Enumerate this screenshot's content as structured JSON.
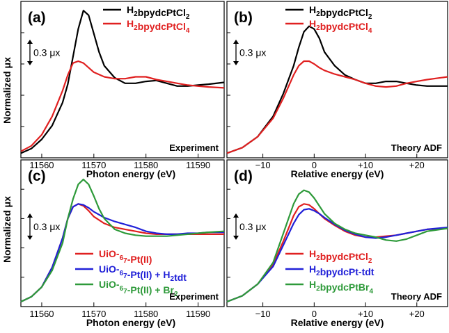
{
  "figure": {
    "ylabel_top": "Normalized μx",
    "ylabel_bottom": "Normalized μx",
    "scale_label": "0.3 μx"
  },
  "chart_data": [
    {
      "type": "line",
      "panel": "(a)",
      "annotation": "Experiment",
      "xlabel": "Photon energy (eV)",
      "ylabel": "Normalized μx",
      "xlim": [
        11556,
        11595
      ],
      "xticks": [
        11560,
        11570,
        11580,
        11590
      ],
      "legend_placement": "top-right",
      "series": [
        {
          "name": "H2bpydcPtCl2",
          "color": "#000000",
          "x": [
            11556,
            11558,
            11560,
            11562,
            11564,
            11565,
            11566,
            11567,
            11568,
            11569,
            11570,
            11571,
            11572,
            11574,
            11576,
            11578,
            11580,
            11582,
            11584,
            11586,
            11588,
            11590,
            11592,
            11595
          ],
          "y": [
            0.0,
            0.05,
            0.15,
            0.3,
            0.55,
            0.75,
            1.05,
            1.35,
            1.55,
            1.5,
            1.3,
            1.1,
            0.95,
            0.82,
            0.76,
            0.76,
            0.78,
            0.79,
            0.76,
            0.73,
            0.73,
            0.74,
            0.75,
            0.77
          ]
        },
        {
          "name": "H2bpydcPtCl4",
          "color": "#e02020",
          "x": [
            11556,
            11558,
            11560,
            11562,
            11564,
            11565,
            11566,
            11567,
            11568,
            11569,
            11570,
            11572,
            11574,
            11576,
            11578,
            11580,
            11582,
            11584,
            11586,
            11588,
            11590,
            11592,
            11595
          ],
          "y": [
            0.02,
            0.08,
            0.2,
            0.4,
            0.68,
            0.85,
            0.98,
            1.0,
            0.98,
            0.93,
            0.88,
            0.83,
            0.81,
            0.81,
            0.83,
            0.83,
            0.8,
            0.78,
            0.76,
            0.74,
            0.73,
            0.72,
            0.71
          ]
        }
      ]
    },
    {
      "type": "line",
      "panel": "(b)",
      "annotation": "Theory ADF",
      "xlabel": "Relative energy (eV)",
      "xlim": [
        -17,
        26
      ],
      "xticks": [
        -10,
        0,
        10,
        20
      ],
      "xtick_labels": [
        "−10",
        "0",
        "+10",
        "+20"
      ],
      "legend_placement": "top-right",
      "series": [
        {
          "name": "H2bpydcPtCl2",
          "color": "#000000",
          "x": [
            -17,
            -14,
            -11,
            -8,
            -6,
            -4,
            -3,
            -2,
            -1,
            0,
            1,
            2,
            4,
            6,
            8,
            10,
            12,
            14,
            16,
            18,
            20,
            22,
            26
          ],
          "y": [
            0.0,
            0.06,
            0.18,
            0.4,
            0.65,
            0.95,
            1.15,
            1.32,
            1.38,
            1.35,
            1.25,
            1.1,
            0.95,
            0.85,
            0.8,
            0.76,
            0.76,
            0.78,
            0.78,
            0.76,
            0.74,
            0.73,
            0.73
          ]
        },
        {
          "name": "H2bpydcPtCl4",
          "color": "#e02020",
          "x": [
            -17,
            -14,
            -11,
            -8,
            -6,
            -4,
            -3,
            -2,
            -1,
            0,
            1,
            2,
            4,
            6,
            8,
            10,
            12,
            14,
            16,
            18,
            20,
            22,
            26
          ],
          "y": [
            0.0,
            0.06,
            0.18,
            0.38,
            0.6,
            0.85,
            0.95,
            1.0,
            1.0,
            0.97,
            0.93,
            0.9,
            0.86,
            0.83,
            0.8,
            0.76,
            0.73,
            0.72,
            0.73,
            0.76,
            0.78,
            0.8,
            0.83
          ]
        }
      ]
    },
    {
      "type": "line",
      "panel": "(c)",
      "annotation": "Experiment",
      "xlabel": "Photon energy (eV)",
      "ylabel": "Normalized μx",
      "xlim": [
        11556,
        11595
      ],
      "xticks": [
        11560,
        11570,
        11580,
        11590
      ],
      "legend_placement": "bottom-right",
      "series": [
        {
          "name": "UiO-67-Pt(II)",
          "color": "#e02020",
          "x": [
            11556,
            11558,
            11560,
            11562,
            11564,
            11565,
            11566,
            11567,
            11568,
            11569,
            11570,
            11572,
            11574,
            11576,
            11578,
            11580,
            11582,
            11584,
            11586,
            11588,
            11590,
            11592,
            11595
          ],
          "y": [
            0.0,
            0.05,
            0.15,
            0.35,
            0.65,
            0.85,
            0.97,
            1.0,
            0.98,
            0.93,
            0.87,
            0.8,
            0.76,
            0.74,
            0.72,
            0.7,
            0.69,
            0.69,
            0.69,
            0.69,
            0.69,
            0.69,
            0.69
          ]
        },
        {
          "name": "UiO-67-Pt(II) + H2tdt",
          "color": "#2020d8",
          "x": [
            11556,
            11558,
            11560,
            11562,
            11564,
            11565,
            11566,
            11567,
            11568,
            11569,
            11570,
            11572,
            11574,
            11576,
            11578,
            11580,
            11582,
            11584,
            11586,
            11588,
            11590,
            11592,
            11595
          ],
          "y": [
            0.0,
            0.05,
            0.15,
            0.35,
            0.65,
            0.85,
            0.97,
            1.0,
            0.99,
            0.96,
            0.92,
            0.86,
            0.82,
            0.79,
            0.76,
            0.72,
            0.7,
            0.69,
            0.69,
            0.7,
            0.7,
            0.71,
            0.71
          ]
        },
        {
          "name": "UiO-67-Pt(II) + Br2",
          "color": "#2e9a3a",
          "x": [
            11556,
            11558,
            11560,
            11562,
            11564,
            11565,
            11566,
            11567,
            11568,
            11569,
            11570,
            11571,
            11572,
            11574,
            11576,
            11578,
            11580,
            11582,
            11584,
            11586,
            11588,
            11590,
            11592,
            11595
          ],
          "y": [
            0.0,
            0.05,
            0.15,
            0.32,
            0.6,
            0.85,
            1.05,
            1.2,
            1.25,
            1.2,
            1.08,
            0.95,
            0.85,
            0.74,
            0.7,
            0.68,
            0.67,
            0.67,
            0.67,
            0.68,
            0.69,
            0.7,
            0.71,
            0.72
          ]
        }
      ]
    },
    {
      "type": "line",
      "panel": "(d)",
      "annotation": "Theory ADF",
      "xlabel": "Relative energy (eV)",
      "xlim": [
        -17,
        26
      ],
      "xticks": [
        -10,
        0,
        10,
        20
      ],
      "xtick_labels": [
        "−10",
        "0",
        "+10",
        "+20"
      ],
      "legend_placement": "bottom-right",
      "series": [
        {
          "name": "H2bpydcPtCl2",
          "color": "#e02020",
          "x": [
            -17,
            -14,
            -11,
            -8,
            -6,
            -4,
            -3,
            -2,
            -1,
            0,
            1,
            2,
            4,
            6,
            8,
            10,
            12,
            14,
            16,
            18,
            20,
            22,
            26
          ],
          "y": [
            0.0,
            0.06,
            0.18,
            0.38,
            0.62,
            0.88,
            0.97,
            1.0,
            0.99,
            0.95,
            0.9,
            0.85,
            0.78,
            0.72,
            0.68,
            0.66,
            0.66,
            0.67,
            0.68,
            0.7,
            0.72,
            0.74,
            0.75
          ]
        },
        {
          "name": "H2bpydcPt-tdt",
          "color": "#2020d8",
          "x": [
            -17,
            -14,
            -11,
            -8,
            -6,
            -4,
            -3,
            -2,
            -1,
            0,
            1,
            2,
            4,
            6,
            8,
            10,
            12,
            14,
            16,
            18,
            20,
            22,
            26
          ],
          "y": [
            0.0,
            0.06,
            0.18,
            0.36,
            0.58,
            0.8,
            0.89,
            0.94,
            0.95,
            0.93,
            0.9,
            0.86,
            0.79,
            0.73,
            0.69,
            0.66,
            0.65,
            0.66,
            0.68,
            0.7,
            0.72,
            0.74,
            0.76
          ]
        },
        {
          "name": "H2bpydcPtBr4",
          "color": "#2e9a3a",
          "x": [
            -17,
            -14,
            -11,
            -8,
            -6,
            -4,
            -3,
            -2,
            -1,
            0,
            1,
            2,
            4,
            6,
            8,
            10,
            12,
            14,
            16,
            18,
            20,
            22,
            26
          ],
          "y": [
            0.0,
            0.06,
            0.18,
            0.4,
            0.7,
            1.0,
            1.1,
            1.14,
            1.12,
            1.06,
            0.98,
            0.9,
            0.8,
            0.74,
            0.7,
            0.68,
            0.66,
            0.63,
            0.62,
            0.64,
            0.68,
            0.72,
            0.75
          ]
        }
      ]
    }
  ]
}
